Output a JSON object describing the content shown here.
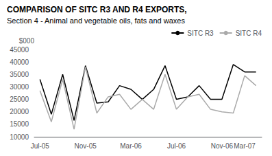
{
  "chart_data": {
    "type": "line",
    "title": "COMPARISON OF SITC R3 AND R4 EXPORTS,",
    "subtitle": "Section 4 - Animal and vegetable oils, fats and waxes",
    "ylabel": "$000",
    "categories": [
      "Jul-05",
      null,
      null,
      null,
      "Nov-05",
      null,
      null,
      null,
      "Mar-06",
      null,
      null,
      null,
      "Jul-06",
      null,
      null,
      null,
      "Nov-06",
      null,
      "Mar-07",
      null
    ],
    "series": [
      {
        "name": "SITC R3",
        "color": "#000000",
        "values": [
          33000,
          19000,
          35000,
          16500,
          38500,
          23500,
          24000,
          30500,
          29000,
          25000,
          29000,
          38500,
          25000,
          26000,
          30500,
          25000,
          25000,
          39000,
          36000,
          36000
        ]
      },
      {
        "name": "SITC R4",
        "color": "#aaaaaa",
        "values": [
          28500,
          16000,
          33000,
          13000,
          38000,
          19500,
          26000,
          27000,
          21000,
          25000,
          21000,
          35000,
          21000,
          26000,
          27000,
          21000,
          20000,
          19500,
          34500,
          30500
        ]
      }
    ],
    "ylim": [
      10000,
      45000
    ],
    "yticks": [
      10000,
      15000,
      20000,
      25000,
      30000,
      35000,
      40000,
      45000
    ],
    "grid": false,
    "legend": "upper right"
  }
}
